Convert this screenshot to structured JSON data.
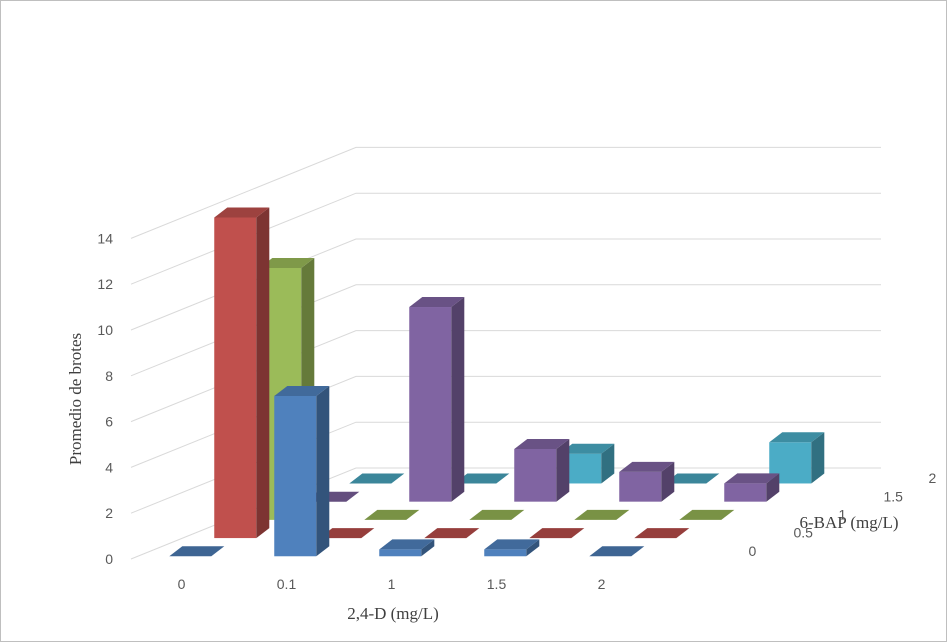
{
  "chart_data": {
    "type": "bar3d",
    "xlabel": "2,4-D (mg/L)",
    "ylabel": "6-BAP (mg/L)",
    "zlabel": "Promedio de brotes",
    "x_categories": [
      "0",
      "0.1",
      "1",
      "1.5",
      "2"
    ],
    "y_categories": [
      "0",
      "0.5",
      "1",
      "1.5",
      "2"
    ],
    "zlim": [
      0,
      14
    ],
    "z_ticks": [
      "0",
      "2",
      "4",
      "6",
      "8",
      "10",
      "12",
      "14"
    ],
    "gridlines": true,
    "series": [
      {
        "name": "0",
        "color": "#4f81bd",
        "values": [
          0,
          7,
          0.3,
          0.3,
          0
        ]
      },
      {
        "name": "0.5",
        "color": "#c0504d",
        "values": [
          14,
          0,
          0,
          0,
          0
        ]
      },
      {
        "name": "1",
        "color": "#9bbb59",
        "values": [
          11,
          0,
          0,
          0,
          0
        ]
      },
      {
        "name": "1.5",
        "color": "#8064a2",
        "values": [
          0,
          8.5,
          2.3,
          1.3,
          0.8
        ]
      },
      {
        "name": "2",
        "color": "#4bacc6",
        "values": [
          0,
          0,
          1.3,
          0,
          1.8
        ]
      }
    ]
  }
}
